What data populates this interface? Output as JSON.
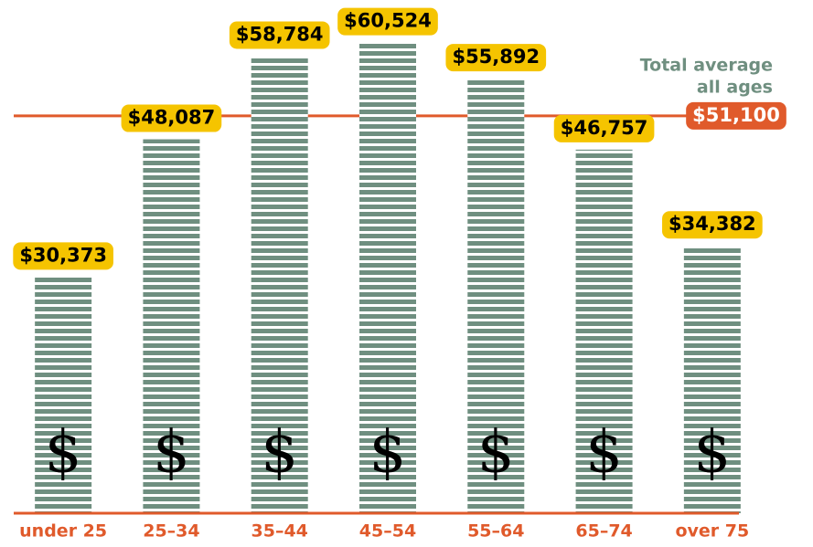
{
  "chart_data": {
    "type": "bar",
    "categories": [
      "under 25",
      "25–34",
      "35–44",
      "45–54",
      "55–64",
      "65–74",
      "over 75"
    ],
    "values": [
      30373,
      48087,
      58784,
      60524,
      55892,
      46757,
      34382
    ],
    "value_labels": [
      "$30,373",
      "$48,087",
      "$58,784",
      "$60,524",
      "$55,892",
      "$46,757",
      "$34,382"
    ],
    "color": "#6f8f80",
    "label_color": "#f5c400",
    "bar_symbol": "$",
    "ylim": [
      0,
      66000
    ],
    "average": 51100,
    "average_label": "$51,100",
    "average_color": "#e05a2b",
    "annotation": [
      "Total average",
      "all ages"
    ]
  }
}
